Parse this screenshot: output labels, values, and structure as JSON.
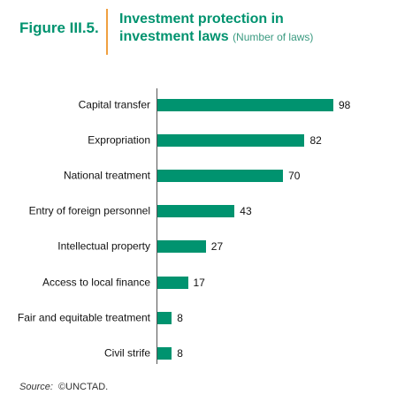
{
  "chart_data": {
    "type": "bar",
    "orientation": "horizontal",
    "figure_label": "Figure III.5.",
    "title": "Investment protection in investment laws",
    "subtitle": "(Number of laws)",
    "categories": [
      "Capital transfer",
      "Expropriation",
      "National treatment",
      "Entry of foreign personnel",
      "Intellectual property",
      "Access to local finance",
      "Fair and equitable treatment",
      "Civil strife"
    ],
    "values": [
      98,
      82,
      70,
      43,
      27,
      17,
      8,
      8
    ],
    "color": "#00936f",
    "source_label": "Source:",
    "source_text": "©UNCTAD."
  }
}
